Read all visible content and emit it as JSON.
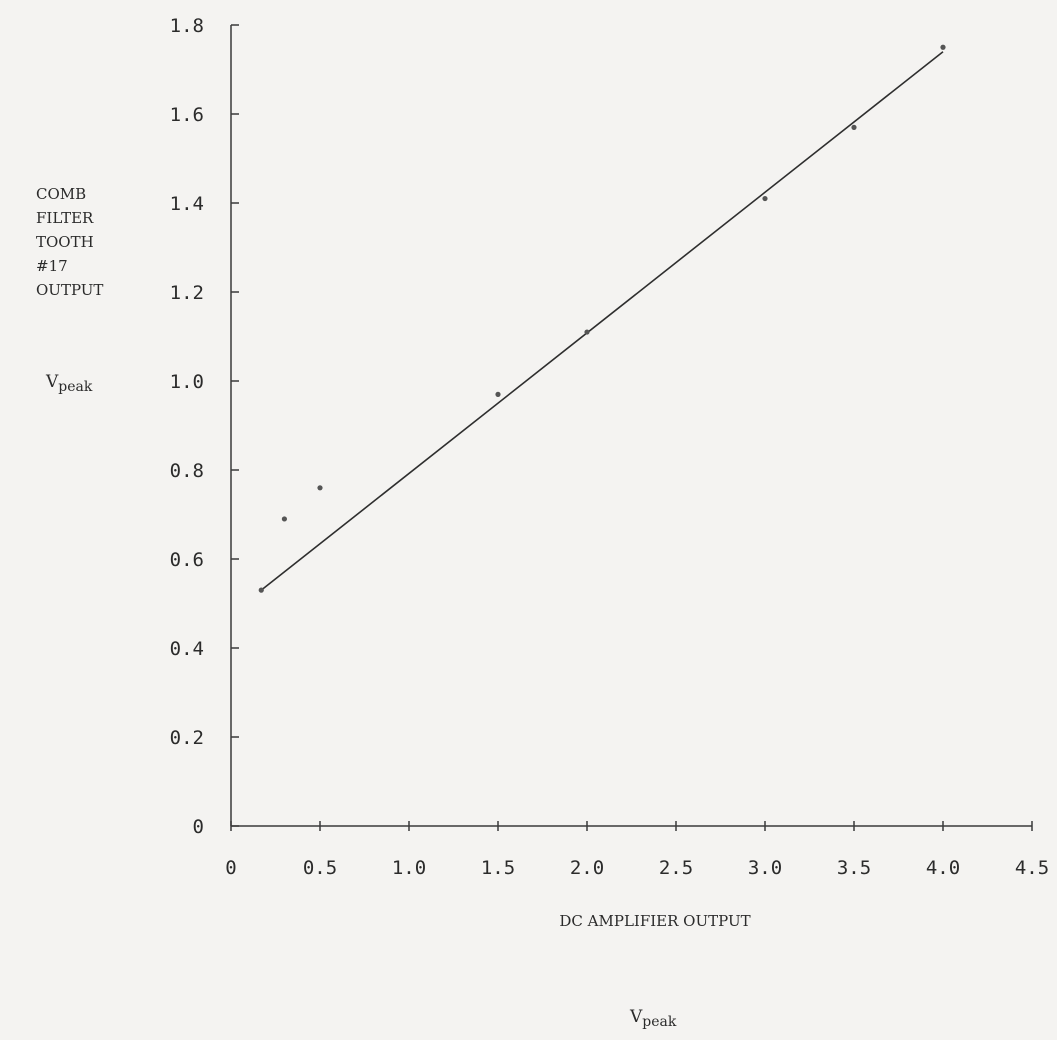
{
  "chart_data": {
    "type": "scatter",
    "title": "",
    "ylabel_lines": [
      "COMB",
      "FILTER",
      "TOOTH",
      "#17",
      "OUTPUT"
    ],
    "ylabel_unit": {
      "base": "V",
      "sub": "peak"
    },
    "xlabel": "DC AMPLIFIER OUTPUT",
    "xlabel_unit": {
      "base": "V",
      "sub": "peak"
    },
    "xlim": [
      0,
      4.5
    ],
    "ylim": [
      0,
      1.8
    ],
    "x_ticks": [
      0,
      0.5,
      1.0,
      1.5,
      2.0,
      2.5,
      3.0,
      3.5,
      4.0,
      4.5
    ],
    "x_tick_labels": [
      "0",
      "0.5",
      "1.0",
      "1.5",
      "2.0",
      "2.5",
      "3.0",
      "3.5",
      "4.0",
      "4.5"
    ],
    "y_ticks": [
      0,
      0.2,
      0.4,
      0.6,
      0.8,
      1.0,
      1.2,
      1.4,
      1.6,
      1.8
    ],
    "y_tick_labels": [
      "0",
      "0.2",
      "0.4",
      "0.6",
      "0.8",
      "1.0",
      "1.2",
      "1.4",
      "1.6",
      "1.8"
    ],
    "grid": false,
    "series": [
      {
        "points": [
          {
            "x": 0.17,
            "y": 0.53
          },
          {
            "x": 0.3,
            "y": 0.69
          },
          {
            "x": 0.5,
            "y": 0.76
          },
          {
            "x": 1.5,
            "y": 0.97
          },
          {
            "x": 2.0,
            "y": 1.11
          },
          {
            "x": 3.0,
            "y": 1.41
          },
          {
            "x": 3.5,
            "y": 1.57
          },
          {
            "x": 4.0,
            "y": 1.75
          }
        ]
      }
    ],
    "fit_line": {
      "from": {
        "x": 0.17,
        "y": 0.53
      },
      "to": {
        "x": 4.0,
        "y": 1.74
      }
    }
  }
}
